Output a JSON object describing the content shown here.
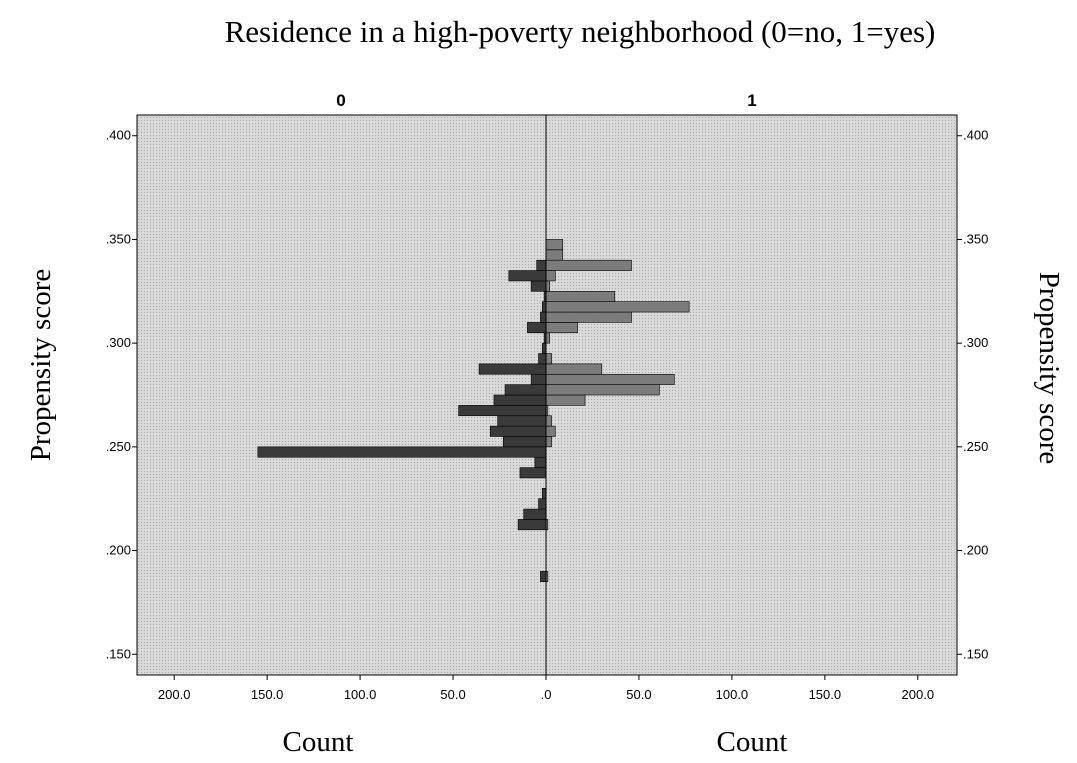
{
  "chart_data": {
    "type": "bar",
    "orientation": "horizontal-mirrored",
    "title": "Residence in a high-poverty neighborhood (0=no, 1=yes)",
    "ylabel": "Propensity score",
    "xlabel_left": "Count",
    "xlabel_right": "Count",
    "panels": [
      "0",
      "1"
    ],
    "ylim": [
      0.14,
      0.41
    ],
    "xlim": [
      0,
      220
    ],
    "y_ticks": [
      0.15,
      0.2,
      0.25,
      0.3,
      0.35,
      0.4
    ],
    "y_tick_labels": [
      ".150",
      ".200",
      ".250",
      ".300",
      ".350",
      ".400"
    ],
    "x_ticks": [
      200,
      150,
      100,
      50,
      0,
      50,
      100,
      150,
      200
    ],
    "x_tick_labels": [
      "200.0",
      "150.0",
      "100.0",
      "50.0",
      ".0",
      "50.0",
      "100.0",
      "150.0",
      "200.0"
    ],
    "bin_width": 0.005,
    "grid": false,
    "colors": {
      "background": "#d0d0d0",
      "group_0_bar": "#3a3a3a",
      "group_1_bar": "#7c7c7c",
      "divider": "#000000"
    },
    "series": [
      {
        "name": "0",
        "side": "left",
        "bins": [
          {
            "y": 0.1875,
            "count": 3
          },
          {
            "y": 0.2125,
            "count": 15
          },
          {
            "y": 0.2175,
            "count": 12
          },
          {
            "y": 0.2225,
            "count": 4
          },
          {
            "y": 0.2275,
            "count": 2
          },
          {
            "y": 0.2375,
            "count": 14
          },
          {
            "y": 0.2425,
            "count": 6
          },
          {
            "y": 0.2475,
            "count": 155
          },
          {
            "y": 0.2525,
            "count": 23
          },
          {
            "y": 0.2575,
            "count": 30
          },
          {
            "y": 0.2625,
            "count": 26
          },
          {
            "y": 0.2675,
            "count": 47
          },
          {
            "y": 0.2725,
            "count": 28
          },
          {
            "y": 0.2775,
            "count": 22
          },
          {
            "y": 0.2825,
            "count": 8
          },
          {
            "y": 0.2875,
            "count": 36
          },
          {
            "y": 0.2925,
            "count": 4
          },
          {
            "y": 0.2975,
            "count": 2
          },
          {
            "y": 0.3025,
            "count": 1
          },
          {
            "y": 0.3075,
            "count": 10
          },
          {
            "y": 0.3125,
            "count": 3
          },
          {
            "y": 0.3175,
            "count": 2
          },
          {
            "y": 0.3225,
            "count": 1
          },
          {
            "y": 0.3275,
            "count": 8
          },
          {
            "y": 0.3325,
            "count": 20
          },
          {
            "y": 0.3375,
            "count": 5
          }
        ]
      },
      {
        "name": "1",
        "side": "right",
        "bins": [
          {
            "y": 0.1875,
            "count": 1
          },
          {
            "y": 0.2125,
            "count": 1
          },
          {
            "y": 0.2525,
            "count": 3
          },
          {
            "y": 0.2575,
            "count": 5
          },
          {
            "y": 0.2625,
            "count": 3
          },
          {
            "y": 0.2675,
            "count": 1
          },
          {
            "y": 0.2725,
            "count": 21
          },
          {
            "y": 0.2775,
            "count": 61
          },
          {
            "y": 0.2825,
            "count": 69
          },
          {
            "y": 0.2875,
            "count": 30
          },
          {
            "y": 0.2925,
            "count": 3
          },
          {
            "y": 0.3025,
            "count": 2
          },
          {
            "y": 0.3075,
            "count": 17
          },
          {
            "y": 0.3125,
            "count": 46
          },
          {
            "y": 0.3175,
            "count": 77
          },
          {
            "y": 0.3225,
            "count": 37
          },
          {
            "y": 0.3275,
            "count": 2
          },
          {
            "y": 0.3325,
            "count": 5
          },
          {
            "y": 0.3375,
            "count": 46
          },
          {
            "y": 0.3425,
            "count": 9
          },
          {
            "y": 0.3475,
            "count": 9
          }
        ]
      }
    ]
  }
}
